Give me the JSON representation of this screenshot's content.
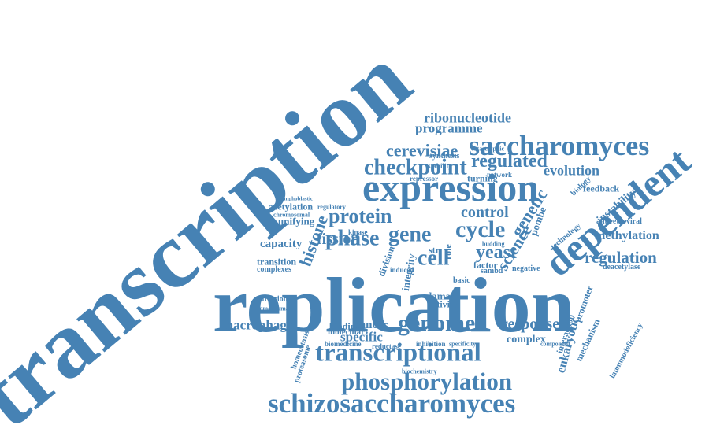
{
  "color": "#4682b4",
  "words": [
    "transcription",
    "replication",
    "expression",
    "dependent",
    "saccharomyces",
    "schizosaccharomyces",
    "transcriptional",
    "phosphorylation",
    "genome",
    "checkpoint",
    "phase",
    "gene",
    "cycle",
    "cell",
    "protein",
    "histone",
    "yeast",
    "regulated",
    "control",
    "evolution",
    "genetic",
    "science",
    "regulation",
    "methylation",
    "cerevisiae",
    "ribonucleotide",
    "programme",
    "fission",
    "macrophage",
    "response",
    "eukaryotic",
    "cancer",
    "specific",
    "complex",
    "integrity",
    "instability",
    "feedback",
    "damage",
    "activity",
    "binding",
    "factor",
    "division",
    "acetylation",
    "unifying",
    "capacity",
    "transition",
    "complexes",
    "activation",
    "homeostasis",
    "proteasome",
    "biomedicine",
    "molecular",
    "reductase",
    "inhibition",
    "interaction",
    "mechanism",
    "promoter",
    "immunodeficiency",
    "antiretroviral",
    "deacetylase",
    "pombe",
    "role",
    "str",
    "turning",
    "network",
    "repressor",
    "synthesis",
    "stability",
    "catastrophic",
    "homeodomain",
    "sambd",
    "kinase",
    "induced",
    "basic",
    "technology",
    "biology",
    "specificity",
    "component",
    "biochemistry",
    "negative",
    "chromosomal",
    "regulatory",
    "lymphoblastic",
    "budding"
  ]
}
